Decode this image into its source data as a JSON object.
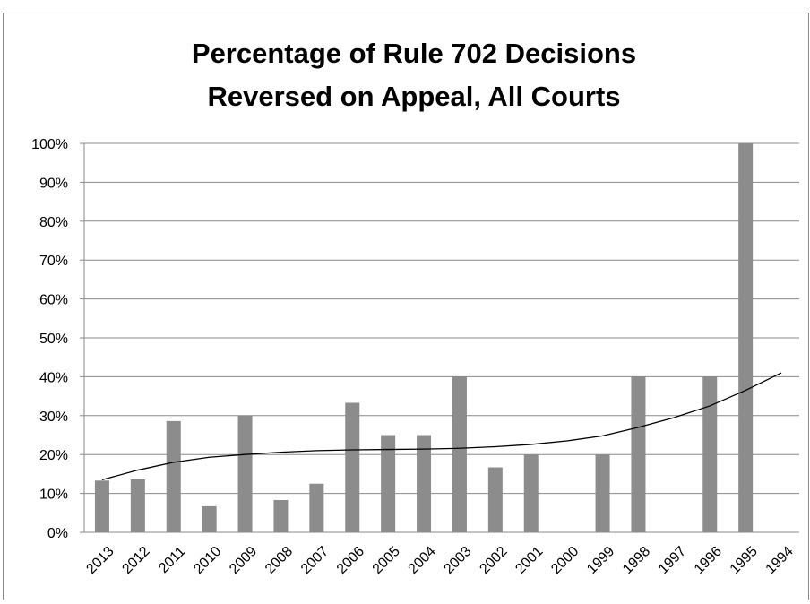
{
  "chart_data": {
    "type": "bar",
    "title": [
      "Percentage of Rule 702 Decisions",
      "Reversed on Appeal, All Courts"
    ],
    "categories": [
      "2013",
      "2012",
      "2011",
      "2010",
      "2009",
      "2008",
      "2007",
      "2006",
      "2005",
      "2004",
      "2003",
      "2002",
      "2001",
      "2000",
      "1999",
      "1998",
      "1997",
      "1996",
      "1995",
      "1994"
    ],
    "values": [
      13.3,
      13.6,
      28.6,
      6.7,
      30,
      8.3,
      12.5,
      33.3,
      25,
      25,
      40,
      16.7,
      20,
      0,
      20,
      40,
      0,
      40,
      100,
      0
    ],
    "color": "#8c8c8c",
    "trendline": {
      "type": "line",
      "color": "#000000",
      "values": [
        13.5,
        16,
        18,
        19.3,
        20,
        20.6,
        21,
        21.2,
        21.3,
        21.4,
        21.6,
        22,
        22.6,
        23.5,
        24.8,
        27,
        29.5,
        32.5,
        36.5,
        41
      ]
    },
    "ylim": [
      0,
      100
    ],
    "yticks": [
      {
        "value": 0,
        "label": "0%"
      },
      {
        "value": 10,
        "label": "10%"
      },
      {
        "value": 20,
        "label": "20%"
      },
      {
        "value": 30,
        "label": "30%"
      },
      {
        "value": 40,
        "label": "40%"
      },
      {
        "value": 50,
        "label": "50%"
      },
      {
        "value": 60,
        "label": "60%"
      },
      {
        "value": 70,
        "label": "70%"
      },
      {
        "value": 80,
        "label": "80%"
      },
      {
        "value": 90,
        "label": "90%"
      },
      {
        "value": 100,
        "label": "100%"
      }
    ],
    "grid": true
  }
}
